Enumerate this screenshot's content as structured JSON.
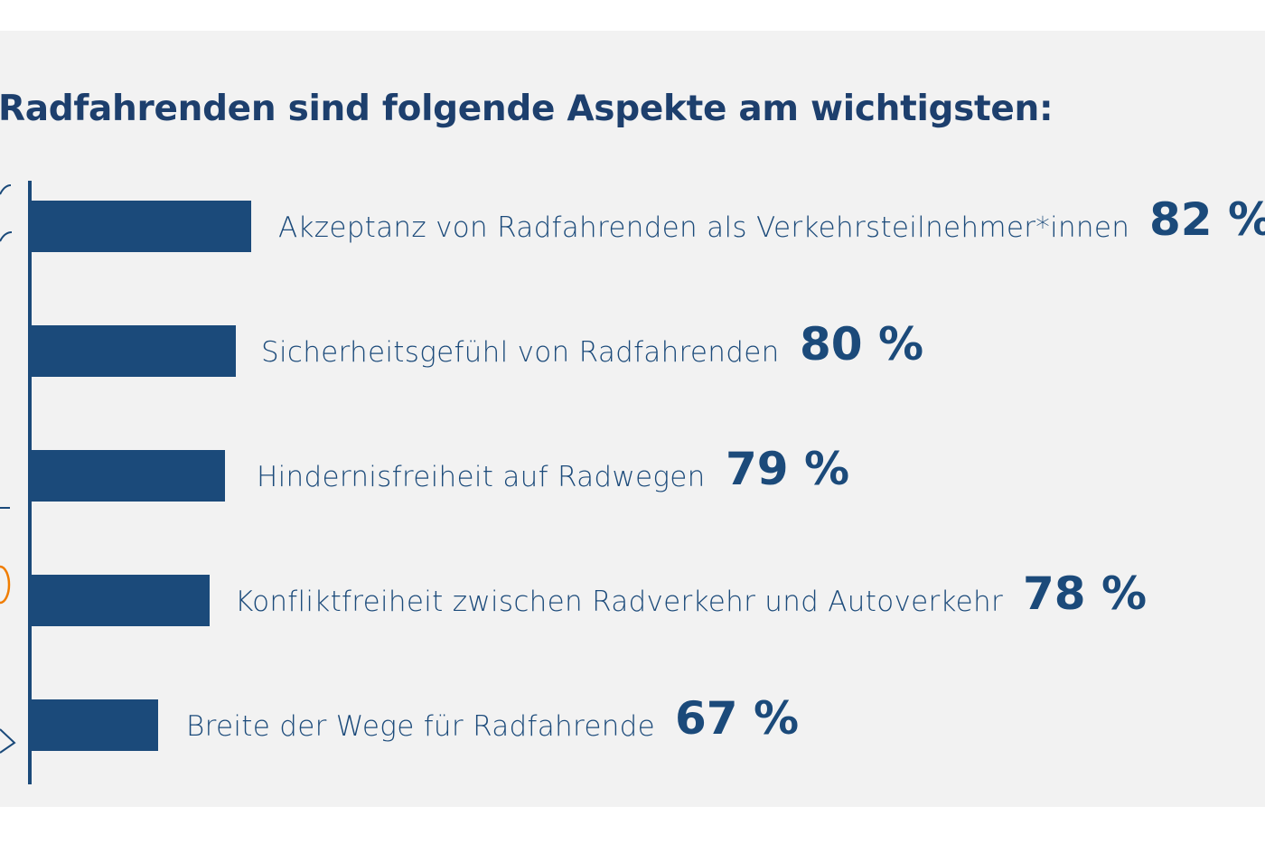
{
  "chart_data": {
    "type": "bar",
    "orientation": "horizontal",
    "title": "Radfahrenden sind folgende Aspekte am wichtigsten:",
    "categories": [
      "Akzeptanz von Radfahrenden als Verkehrsteilnehmer*innen",
      "Sicherheitsgefühl von Radfahrenden",
      "Hindernisfreiheit auf Radwegen",
      "Konfliktfreiheit zwischen Radverkehr und Autoverkehr",
      "Breite der Wege für Radfahrende"
    ],
    "values": [
      82,
      80,
      79,
      78,
      67
    ],
    "value_labels": [
      "82 %",
      "80 %",
      "79 %",
      "78 %",
      "67 %"
    ],
    "grid": false,
    "colors": {
      "bar": "#1b4a7a",
      "title": "#1d3f6d",
      "background": "#f2f2f2",
      "accent": "#f07d00"
    }
  }
}
